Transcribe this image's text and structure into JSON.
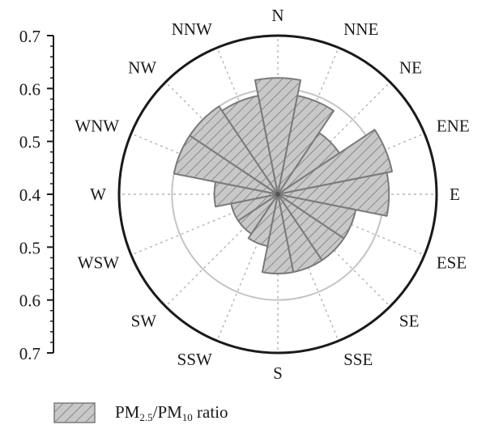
{
  "chart_data": {
    "type": "polar-bar",
    "title": "",
    "legend": {
      "label": "PM2.5/PM10 ratio",
      "parts": [
        {
          "text": "PM",
          "sub": "2.5"
        },
        {
          "text": "/PM",
          "sub": "10"
        },
        {
          "text": " ratio",
          "sub": ""
        }
      ],
      "position": "bottom-left"
    },
    "radial_axis": {
      "ticks": [
        "0.7",
        "0.6",
        "0.5",
        "0.4",
        "0.5",
        "0.6",
        "0.7"
      ],
      "tick_values": [
        0.7,
        0.6,
        0.5,
        0.4,
        0.5,
        0.6,
        0.7
      ],
      "inner_radius_value": 0.4,
      "outer_radius_value": 0.7,
      "reference_circle_value": 0.6
    },
    "directions": [
      "N",
      "NNE",
      "NE",
      "ENE",
      "E",
      "ESE",
      "SE",
      "SSE",
      "S",
      "SSW",
      "SW",
      "WSW",
      "W",
      "WNW",
      "NW",
      "NNW"
    ],
    "series": [
      {
        "name": "PM2.5/PM10 ratio",
        "values": [
          0.62,
          0.59,
          0.54,
          0.62,
          0.61,
          0.55,
          0.55,
          0.55,
          0.55,
          0.5,
          0.49,
          0.49,
          0.52,
          0.6,
          0.6,
          0.59
        ]
      }
    ],
    "colors": {
      "fill": "#c8c8c8",
      "hatch": "#7a7a7a",
      "stroke": "#7a7a7a",
      "grid": "#b5b5b5",
      "reference": "#c4c4c4",
      "axis": "#1a1a1a"
    }
  }
}
